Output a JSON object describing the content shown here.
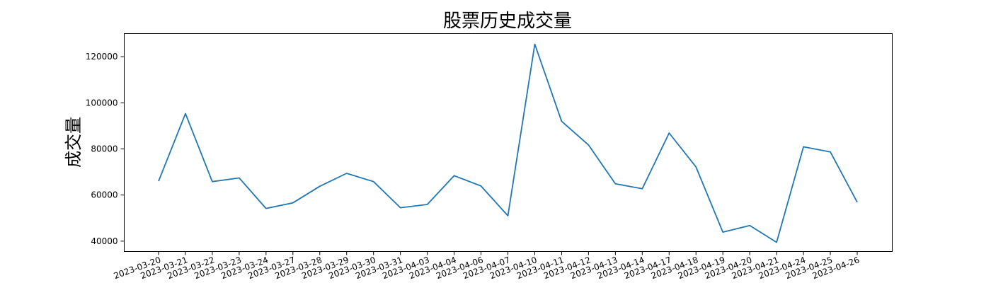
{
  "chart_data": {
    "type": "line",
    "title": "股票历史成交量",
    "xlabel": "",
    "ylabel": "成交量",
    "grid": false,
    "legend": "none",
    "ylim": [
      35500,
      130000
    ],
    "yticks": [
      40000,
      60000,
      80000,
      100000,
      120000
    ],
    "color": "#1f77b4",
    "categories": [
      "2023-03-20",
      "2023-03-21",
      "2023-03-22",
      "2023-03-23",
      "2023-03-24",
      "2023-03-27",
      "2023-03-28",
      "2023-03-29",
      "2023-03-30",
      "2023-03-31",
      "2023-04-03",
      "2023-04-04",
      "2023-04-06",
      "2023-04-07",
      "2023-04-10",
      "2023-04-11",
      "2023-04-12",
      "2023-04-13",
      "2023-04-14",
      "2023-04-17",
      "2023-04-18",
      "2023-04-19",
      "2023-04-20",
      "2023-04-21",
      "2023-04-24",
      "2023-04-25",
      "2023-04-26"
    ],
    "values": [
      66000,
      95300,
      65800,
      67400,
      54200,
      56600,
      63800,
      69400,
      65800,
      54500,
      55900,
      68400,
      63900,
      51000,
      125400,
      92000,
      81700,
      64900,
      62700,
      86900,
      72200,
      43900,
      46800,
      39500,
      80900,
      78700,
      56900
    ]
  }
}
